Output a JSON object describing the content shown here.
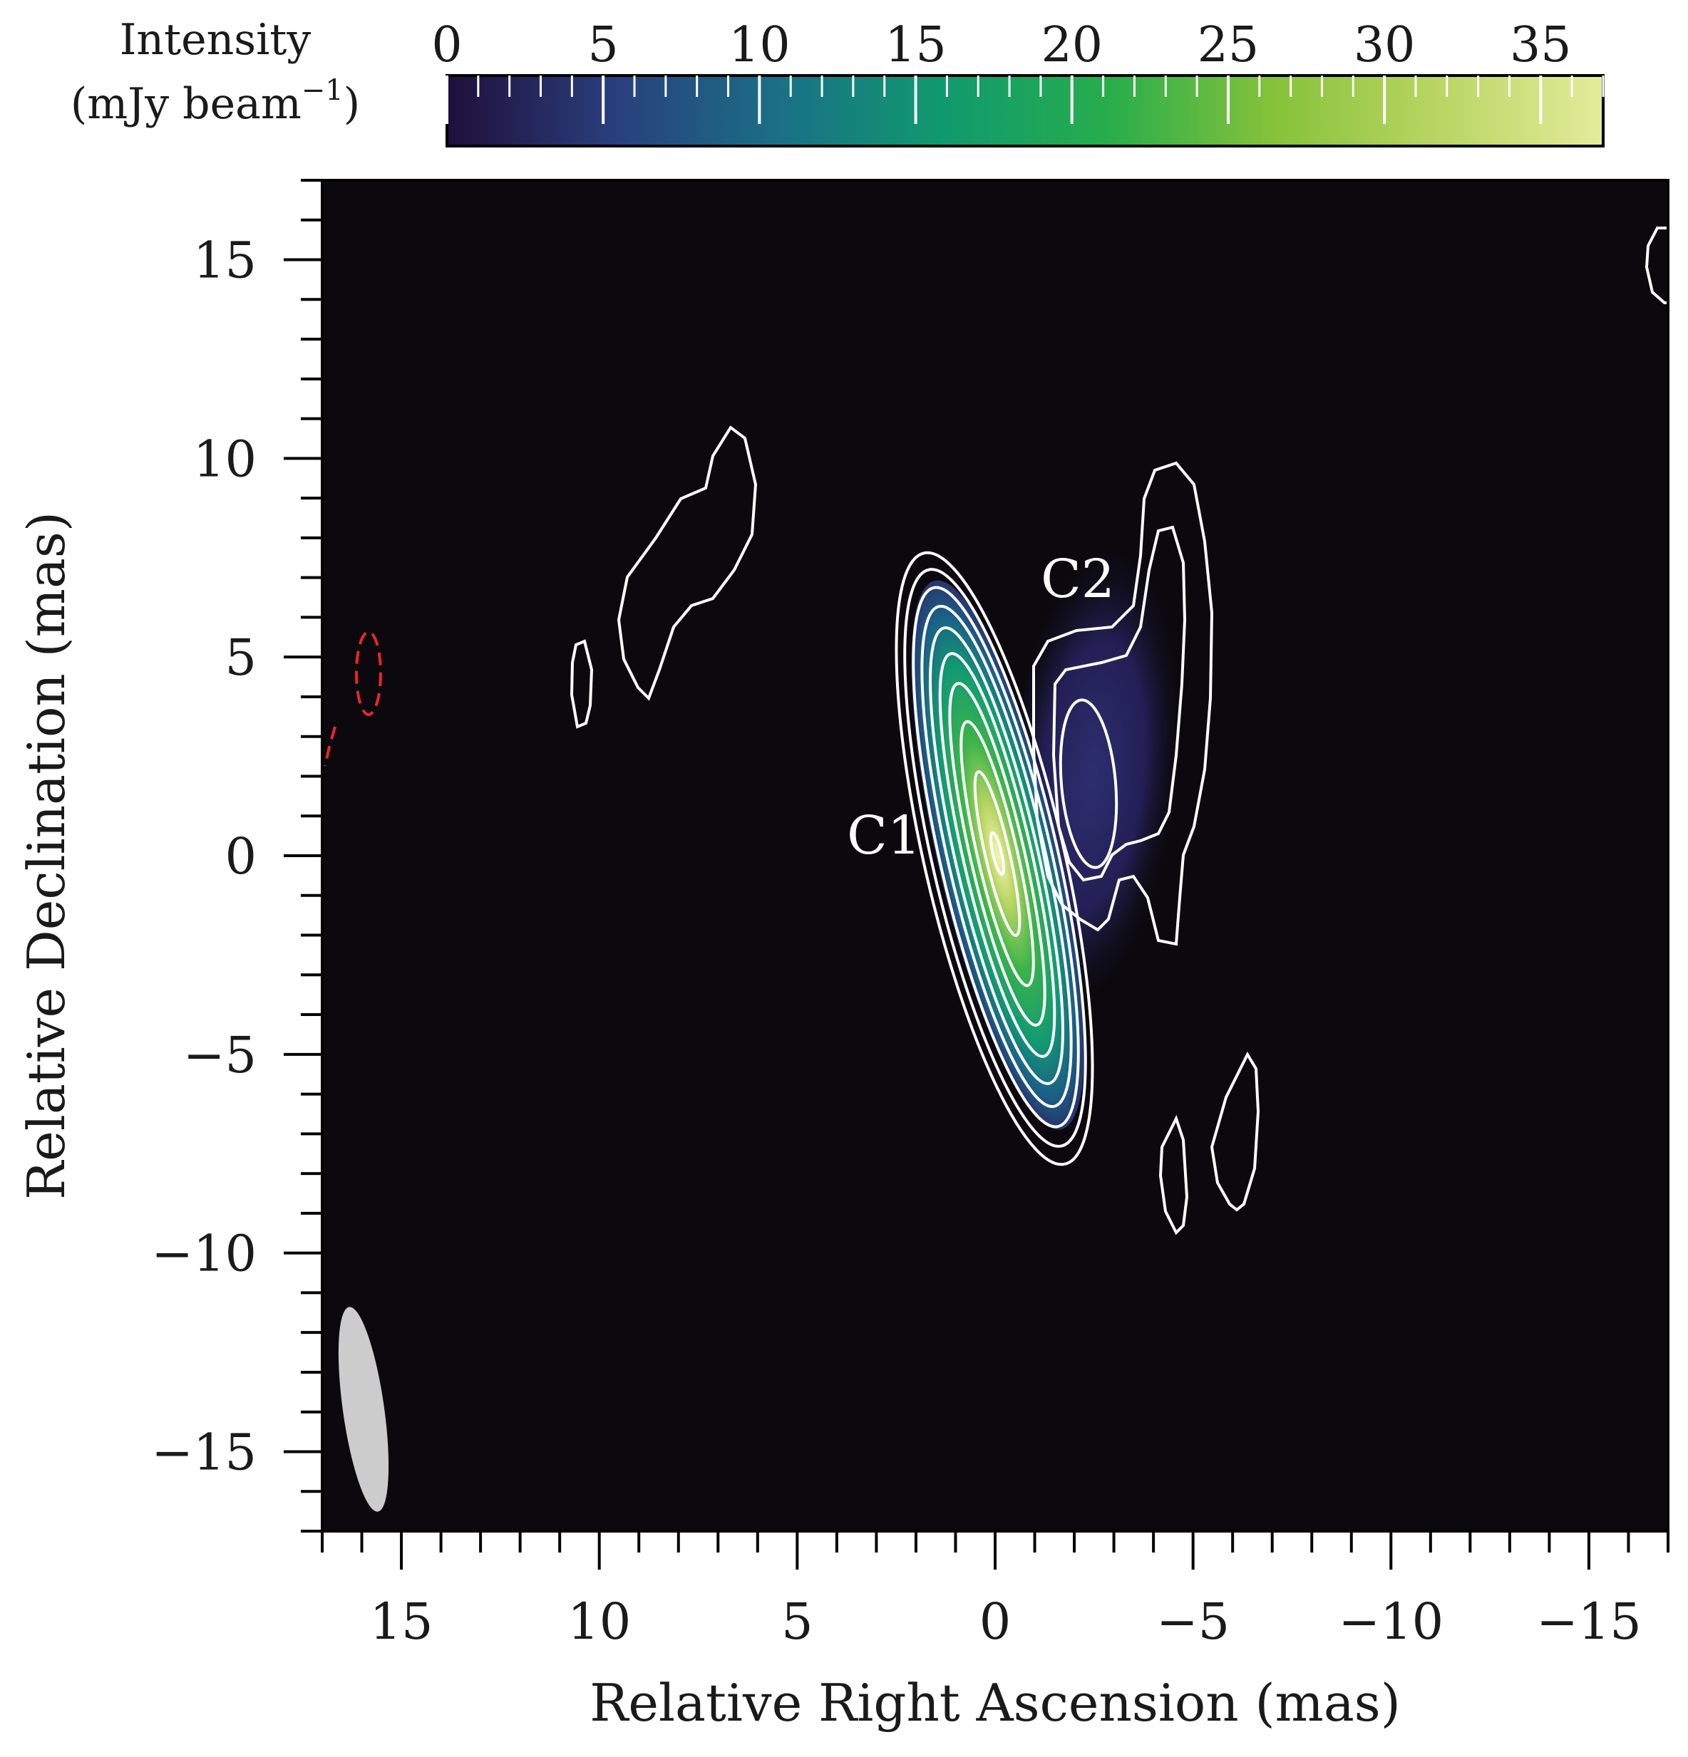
{
  "chart_data": {
    "type": "heatmap",
    "xlabel": "Relative Right Ascension (mas)",
    "ylabel": "Relative Declination (mas)",
    "xlim": [
      17,
      -17
    ],
    "ylim": [
      -17,
      17
    ],
    "x_ticks": [
      15,
      10,
      5,
      0,
      -5,
      -10,
      -15
    ],
    "y_ticks": [
      15,
      10,
      5,
      0,
      -5,
      -10,
      -15
    ],
    "x_tick_labels": [
      "15",
      "10",
      "5",
      "0",
      "−5",
      "−10",
      "−15"
    ],
    "y_tick_labels": [
      "15",
      "10",
      "5",
      "0",
      "−5",
      "−10",
      "−15"
    ],
    "grid": false,
    "colorbar": {
      "title_line1": "Intensity",
      "title_line2": "(mJy beam",
      "title_sup": "−1",
      "title_close": ")",
      "placement": "top",
      "range": [
        0,
        37
      ],
      "ticks": [
        0,
        5,
        10,
        15,
        20,
        25,
        30,
        35
      ],
      "tick_labels": [
        "0",
        "5",
        "10",
        "15",
        "20",
        "25",
        "30",
        "35"
      ],
      "colormap": [
        "#1f0f3a",
        "#2a3e7c",
        "#1a6f86",
        "#109a6e",
        "#27ad4c",
        "#86c23a",
        "#b9d563",
        "#e3ec9b"
      ]
    },
    "components": [
      {
        "label": "C1",
        "x": 0.0,
        "y": 0.0,
        "peak": 37
      },
      {
        "label": "C2",
        "x": -2.2,
        "y": 2.3,
        "peak": 5
      }
    ],
    "beam": {
      "x": 16.0,
      "y": -14.2,
      "major": 5.2,
      "minor": 1.35,
      "pa_deg": -8,
      "color": "#cccccc"
    },
    "contour_colors": {
      "positive": "#ffffff",
      "negative": "#e8262a"
    },
    "background_color": "#0b090e"
  }
}
